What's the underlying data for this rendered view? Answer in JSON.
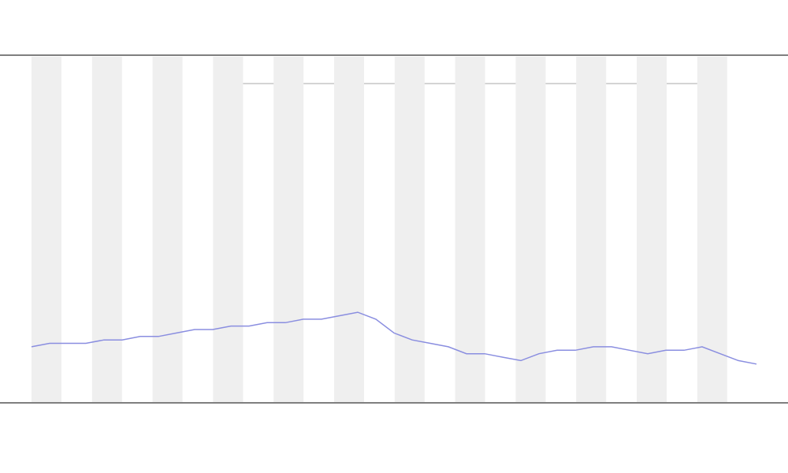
{
  "chart_data": {
    "type": "line",
    "series": [
      {
        "color": "#8a8ee0",
        "values": [
          16,
          17,
          17,
          17,
          18,
          18,
          19,
          19,
          20,
          21,
          21,
          22,
          22,
          23,
          23,
          24,
          24,
          25,
          26,
          24,
          20,
          18,
          17,
          16,
          14,
          14,
          13,
          12,
          14,
          15,
          15,
          16,
          16,
          15,
          14,
          15,
          15,
          16,
          14,
          12,
          11
        ]
      }
    ],
    "ylim": [
      0,
      100
    ]
  }
}
